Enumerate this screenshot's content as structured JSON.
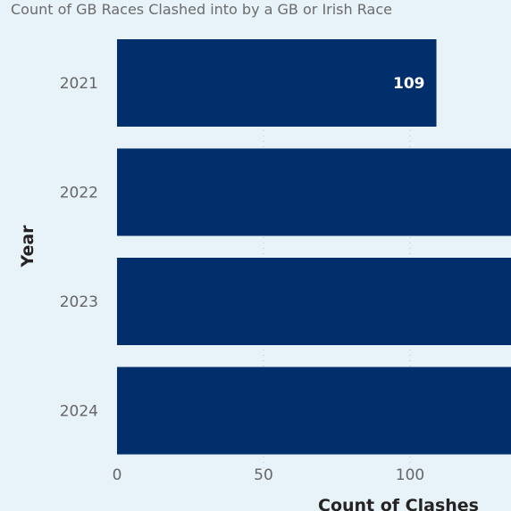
{
  "chart_data": {
    "type": "bar",
    "orientation": "horizontal",
    "title": "Count of GB Races Clashed into by a GB or Irish Race",
    "xlabel": "Count of Clashes",
    "ylabel": "Year",
    "categories": [
      "2021",
      "2022",
      "2023",
      "2024"
    ],
    "series": [
      {
        "values": [
          109,
          140,
          140,
          140
        ]
      }
    ],
    "data_labels": [
      "109",
      "",
      "",
      ""
    ],
    "x_ticks": [
      0,
      50,
      100
    ],
    "xlim": [
      0,
      135
    ],
    "grid": true,
    "legend": "none",
    "bar_color": "#002f6c"
  }
}
